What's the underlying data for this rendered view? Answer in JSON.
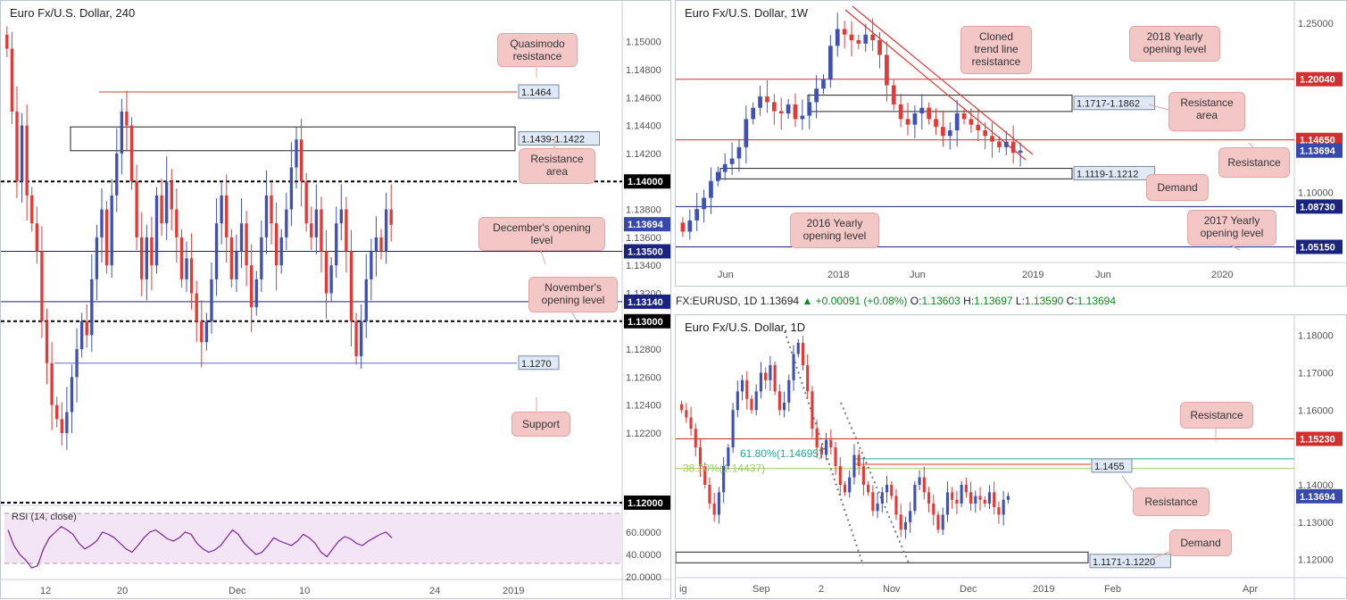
{
  "infobar": {
    "symbol": "FX:EURUSD, 1D",
    "price": "1.13694",
    "change": "+0.00091 (+0.08%)",
    "o_label": "O:",
    "o": "1.13603",
    "h_label": "H:",
    "h": "1.13697",
    "l_label": "L:",
    "l": "1.13590",
    "c_label": "C:",
    "c": "1.13694"
  },
  "colors": {
    "up": "#3f51b5",
    "down": "#e53935",
    "red_level": "#d32f2f",
    "blue_level": "#1a237e",
    "callout_bg": "#f4c7c7"
  },
  "chart_data": [
    {
      "id": "h4",
      "type": "candlestick",
      "title": "Euro Fx/U.S. Dollar, 240",
      "ylim": [
        1.119,
        1.151
      ],
      "yticks": [
        "1.15000",
        "1.14800",
        "1.14600",
        "1.14400",
        "1.14200",
        "1.13800",
        "1.13600",
        "1.13400",
        "1.13200",
        "1.12800",
        "1.12600",
        "1.12400",
        "1.12200"
      ],
      "xticks": [
        "12",
        "20",
        "Dec",
        "10",
        "24",
        "2019"
      ],
      "price_labels": [
        {
          "text": "1.14000",
          "value": 1.14,
          "style": "black"
        },
        {
          "text": "1.13694",
          "value": 1.13694,
          "style": "blue"
        },
        {
          "text": "1.13500",
          "value": 1.135,
          "style": "navy"
        },
        {
          "text": "1.13140",
          "value": 1.1314,
          "style": "navy"
        },
        {
          "text": "1.13000",
          "value": 1.13,
          "style": "black"
        },
        {
          "text": "1.12000",
          "value": 1.12,
          "style": "black"
        }
      ],
      "boxes": [
        {
          "label": "1.1439-1.1422",
          "low": 1.1422,
          "high": 1.1439
        }
      ],
      "marks": [
        {
          "label": "1.1464",
          "value": 1.1464
        },
        {
          "label": "1.1270",
          "value": 1.127
        }
      ],
      "closes": [
        1.1495,
        1.145,
        1.14,
        1.144,
        1.139,
        1.137,
        1.135,
        1.13,
        1.127,
        1.124,
        1.123,
        1.122,
        1.1235,
        1.126,
        1.128,
        1.13,
        1.129,
        1.133,
        1.136,
        1.138,
        1.134,
        1.139,
        1.142,
        1.145,
        1.144,
        1.14,
        1.136,
        1.133,
        1.136,
        1.134,
        1.139,
        1.137,
        1.14,
        1.138,
        1.136,
        1.133,
        1.1345,
        1.132,
        1.13,
        1.1285,
        1.13,
        1.133,
        1.137,
        1.139,
        1.136,
        1.133,
        1.135,
        1.137,
        1.134,
        1.131,
        1.133,
        1.136,
        1.139,
        1.137,
        1.134,
        1.136,
        1.138,
        1.141,
        1.143,
        1.14,
        1.137,
        1.136,
        1.138,
        1.135,
        1.132,
        1.134,
        1.137,
        1.138,
        1.135,
        1.13,
        1.1275,
        1.13,
        1.133,
        1.135,
        1.136,
        1.135,
        1.138,
        1.1369
      ],
      "callouts": [
        {
          "text": "Quasimodo resistance"
        },
        {
          "text": "Resistance area"
        },
        {
          "text": "December's opening level"
        },
        {
          "text": "November's opening level"
        },
        {
          "text": "Support"
        }
      ]
    },
    {
      "id": "rsi",
      "type": "line",
      "title": "RSI (14, close)",
      "ylim": [
        20,
        80
      ],
      "yticks": [
        "60.0000",
        "40.0000",
        "20.0000"
      ],
      "values": [
        62,
        48,
        40,
        35,
        28,
        30,
        45,
        55,
        60,
        65,
        62,
        58,
        50,
        45,
        48,
        52,
        60,
        58,
        55,
        50,
        45,
        42,
        48,
        55,
        60,
        62,
        58,
        54,
        52,
        55,
        60,
        58,
        50,
        45,
        42,
        44,
        48,
        55,
        62,
        58,
        50,
        45,
        40,
        42,
        48,
        55,
        52,
        50,
        48,
        52,
        58,
        55,
        50,
        42,
        38,
        45,
        52,
        56,
        54,
        50,
        48,
        52,
        55,
        58,
        60,
        55
      ]
    },
    {
      "id": "w1",
      "type": "candlestick",
      "title": "Euro Fx/U.S. Dollar, 1W",
      "ylim": [
        1.04,
        1.262
      ],
      "yticks": [
        "1.25000",
        "1.10000"
      ],
      "xticks": [
        "Jun",
        "2018",
        "Jun",
        "2019",
        "Jun",
        "2020"
      ],
      "price_labels": [
        {
          "text": "1.20040",
          "value": 1.2004,
          "style": "red"
        },
        {
          "text": "1.14650",
          "value": 1.1465,
          "style": "red"
        },
        {
          "text": "1.13694",
          "value": 1.13694,
          "style": "blue"
        },
        {
          "text": "1.08730",
          "value": 1.0873,
          "style": "navy"
        },
        {
          "text": "1.05150",
          "value": 1.0515,
          "style": "navy"
        }
      ],
      "boxes": [
        {
          "label": "1.1717-1.1862",
          "low": 1.1717,
          "high": 1.1862
        },
        {
          "label": "1.1119-1.1212",
          "low": 1.1119,
          "high": 1.1212
        }
      ],
      "closes": [
        1.065,
        1.075,
        1.085,
        1.095,
        1.11,
        1.118,
        1.125,
        1.13,
        1.14,
        1.165,
        1.175,
        1.185,
        1.18,
        1.172,
        1.17,
        1.178,
        1.165,
        1.168,
        1.18,
        1.192,
        1.2,
        1.23,
        1.245,
        1.24,
        1.235,
        1.232,
        1.24,
        1.235,
        1.222,
        1.195,
        1.178,
        1.165,
        1.16,
        1.17,
        1.175,
        1.165,
        1.158,
        1.15,
        1.155,
        1.17,
        1.165,
        1.16,
        1.155,
        1.15,
        1.145,
        1.14,
        1.145,
        1.135,
        1.137
      ],
      "callouts": [
        {
          "text": "Cloned trend line resistance"
        },
        {
          "text": "2018 Yearly opening level"
        },
        {
          "text": "Resistance area"
        },
        {
          "text": "Resistance"
        },
        {
          "text": "Demand"
        },
        {
          "text": "2016 Yearly opening level"
        },
        {
          "text": "2017 Yearly opening level"
        }
      ]
    },
    {
      "id": "d1",
      "type": "candlestick",
      "title": "Euro Fx/U.S. Dollar, 1D",
      "ylim": [
        1.1185,
        1.183
      ],
      "yticks": [
        "1.18000",
        "1.17000",
        "1.16000",
        "1.14000",
        "1.13000",
        "1.12000"
      ],
      "xticks": [
        "ig",
        "Sep",
        "2",
        "Nov",
        "Dec",
        "2019",
        "Feb",
        "Apr"
      ],
      "price_labels": [
        {
          "text": "1.15230",
          "value": 1.1523,
          "style": "red"
        },
        {
          "text": "1.13694",
          "value": 1.13694,
          "style": "blue"
        }
      ],
      "fib": [
        {
          "text": "61.80%(1.14695)",
          "value": 1.14695,
          "color": "#26a69a"
        },
        {
          "text": "38.20%(1.14437)",
          "value": 1.14437,
          "color": "#9ccc65"
        }
      ],
      "boxes": [
        {
          "label": "1.1171-1.1220",
          "low": 1.1171,
          "high": 1.122
        }
      ],
      "marks": [
        {
          "label": "1.1455",
          "value": 1.1455
        }
      ],
      "closes": [
        1.16,
        1.158,
        1.155,
        1.15,
        1.145,
        1.14,
        1.135,
        1.132,
        1.138,
        1.145,
        1.15,
        1.16,
        1.165,
        1.168,
        1.163,
        1.16,
        1.165,
        1.17,
        1.168,
        1.172,
        1.165,
        1.16,
        1.162,
        1.168,
        1.175,
        1.178,
        1.172,
        1.165,
        1.155,
        1.15,
        1.148,
        1.152,
        1.15,
        1.145,
        1.14,
        1.138,
        1.142,
        1.148,
        1.145,
        1.14,
        1.138,
        1.133,
        1.135,
        1.138,
        1.14,
        1.137,
        1.132,
        1.128,
        1.13,
        1.133,
        1.14,
        1.142,
        1.138,
        1.135,
        1.132,
        1.128,
        1.132,
        1.138,
        1.136,
        1.135,
        1.14,
        1.138,
        1.135,
        1.137,
        1.136,
        1.135,
        1.138,
        1.134,
        1.132,
        1.136,
        1.137
      ],
      "callouts": [
        {
          "text": "Resistance"
        },
        {
          "text": "Resistance"
        },
        {
          "text": "Demand"
        }
      ]
    }
  ]
}
